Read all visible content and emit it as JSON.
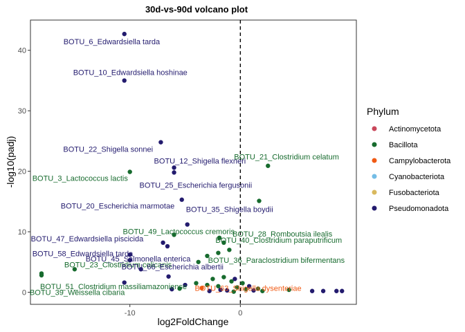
{
  "chart_data": {
    "type": "scatter",
    "title": "30d-vs-90d volcano plot",
    "xlabel": "log2FoldChange",
    "ylabel": "-log10(padj)",
    "xlim": [
      -19,
      10.5
    ],
    "ylim": [
      -2,
      45
    ],
    "xticks": [
      "-10",
      "0"
    ],
    "yticks": [
      "0",
      "10",
      "20",
      "30",
      "40"
    ],
    "grid": false,
    "reference_line_x": 0,
    "legend": {
      "title": "Phylum",
      "placement": "right",
      "items": [
        {
          "label": "Actinomycetota",
          "color": "#c9475b"
        },
        {
          "label": "Bacillota",
          "color": "#176b2e"
        },
        {
          "label": "Campylobacterota",
          "color": "#f05a14"
        },
        {
          "label": "Cyanobacteriota",
          "color": "#74bde6"
        },
        {
          "label": "Fusobacteriota",
          "color": "#d9b95e"
        },
        {
          "label": "Pseudomonadota",
          "color": "#231b6e"
        }
      ]
    },
    "points": [
      {
        "x": -10.5,
        "y": 42.7,
        "phylum": "Pseudomonadota",
        "label": "BOTU_6_Edwardsiella tarda"
      },
      {
        "x": -10.5,
        "y": 35.0,
        "phylum": "Pseudomonadota",
        "label": "BOTU_10_Edwardsiella hoshinae"
      },
      {
        "x": -7.2,
        "y": 24.8,
        "phylum": "Pseudomonadota",
        "label": "BOTU_22_Shigella sonnei"
      },
      {
        "x": 2.5,
        "y": 20.9,
        "phylum": "Bacillota",
        "label": "BOTU_21_Clostridium celatum"
      },
      {
        "x": -6.0,
        "y": 20.6,
        "phylum": "Pseudomonadota",
        "label": "BOTU_12_Shigella flexneri"
      },
      {
        "x": -10.0,
        "y": 19.9,
        "phylum": "Bacillota",
        "label": "BOTU_3_Lactococcus lactis"
      },
      {
        "x": -6.0,
        "y": 19.8,
        "phylum": "Pseudomonadota",
        "label": "BOTU_25_Escherichia fergusonii"
      },
      {
        "x": 1.7,
        "y": 15.1,
        "phylum": "Bacillota",
        "label": ""
      },
      {
        "x": -5.3,
        "y": 15.3,
        "phylum": "Pseudomonadota",
        "label": "BOTU_20_Escherichia marmotae"
      },
      {
        "x": -4.8,
        "y": 11.2,
        "phylum": "Pseudomonadota",
        "label": "BOTU_35_Shigella boydii"
      },
      {
        "x": -6.0,
        "y": 9.5,
        "phylum": "Bacillota",
        "label": "BOTU_49_Lactococcus cremoris"
      },
      {
        "x": -1.9,
        "y": 9.0,
        "phylum": "Bacillota",
        "label": "BOTU_28_Romboutsia ilealis"
      },
      {
        "x": -7.0,
        "y": 8.2,
        "phylum": "Pseudomonadota",
        "label": "BOTU_47_Edwardsiella piscicida"
      },
      {
        "x": -6.6,
        "y": 7.6,
        "phylum": "Pseudomonadota",
        "label": ""
      },
      {
        "x": -1.5,
        "y": 8.2,
        "phylum": "Bacillota",
        "label": "BOTU_40_Clostridium paraputrificum"
      },
      {
        "x": -10.0,
        "y": 6.2,
        "phylum": "Pseudomonadota",
        "label": "BOTU_58_Edwardsiella tarda"
      },
      {
        "x": -10.0,
        "y": 5.3,
        "phylum": "Pseudomonadota",
        "label": "BOTU_45_Salmonella enterica"
      },
      {
        "x": -2.0,
        "y": 6.5,
        "phylum": "Bacillota",
        "label": ""
      },
      {
        "x": -1.0,
        "y": 7.0,
        "phylum": "Bacillota",
        "label": ""
      },
      {
        "x": -3.8,
        "y": 5.0,
        "phylum": "Bacillota",
        "label": "BOTU_36_Paraclostridium bifermentans"
      },
      {
        "x": -3.0,
        "y": 6.0,
        "phylum": "Bacillota",
        "label": ""
      },
      {
        "x": -15.0,
        "y": 3.8,
        "phylum": "Bacillota",
        "label": "BOTU_23_Clostridium colicanis"
      },
      {
        "x": -9.0,
        "y": 3.8,
        "phylum": "Pseudomonadota",
        "label": "BOTU_66_Escherichia albertii"
      },
      {
        "x": -18.0,
        "y": 2.8,
        "phylum": "Bacillota",
        "label": "BOTU_51_Clostridium massiliamazoniense"
      },
      {
        "x": -18.0,
        "y": 3.1,
        "phylum": "Bacillota",
        "label": "BOTU_39_Weissella cibaria"
      },
      {
        "x": -10.5,
        "y": 1.6,
        "phylum": "Pseudomonadota",
        "label": ""
      },
      {
        "x": -6.5,
        "y": 2.6,
        "phylum": "Pseudomonadota",
        "label": ""
      },
      {
        "x": -3.5,
        "y": 0.7,
        "phylum": "Campylobacterota",
        "label": "BOTU_63_Shigella dysenteriae"
      },
      {
        "x": -5.0,
        "y": 1.2,
        "phylum": "Pseudomonadota",
        "label": ""
      },
      {
        "x": -4.0,
        "y": 1.5,
        "phylum": "Bacillota",
        "label": ""
      },
      {
        "x": -3.0,
        "y": 1.2,
        "phylum": "Bacillota",
        "label": ""
      },
      {
        "x": -2.5,
        "y": 2.2,
        "phylum": "Bacillota",
        "label": ""
      },
      {
        "x": -2.0,
        "y": 1.0,
        "phylum": "Bacillota",
        "label": ""
      },
      {
        "x": -1.5,
        "y": 2.5,
        "phylum": "Bacillota",
        "label": ""
      },
      {
        "x": -1.2,
        "y": 0.3,
        "phylum": "Pseudomonadota",
        "label": ""
      },
      {
        "x": -0.8,
        "y": 1.8,
        "phylum": "Bacillota",
        "label": ""
      },
      {
        "x": -0.5,
        "y": 2.2,
        "phylum": "Pseudomonadota",
        "label": ""
      },
      {
        "x": -0.3,
        "y": 0.8,
        "phylum": "Bacillota",
        "label": ""
      },
      {
        "x": 0.2,
        "y": 1.5,
        "phylum": "Bacillota",
        "label": ""
      },
      {
        "x": 0.5,
        "y": 0.5,
        "phylum": "Bacillota",
        "label": ""
      },
      {
        "x": 0.8,
        "y": 1.0,
        "phylum": "Pseudomonadota",
        "label": ""
      },
      {
        "x": 1.2,
        "y": 0.3,
        "phylum": "Pseudomonadota",
        "label": ""
      },
      {
        "x": 1.6,
        "y": 0.6,
        "phylum": "Bacillota",
        "label": ""
      },
      {
        "x": 2.0,
        "y": 0.2,
        "phylum": "Bacillota",
        "label": ""
      },
      {
        "x": -5.5,
        "y": 0.6,
        "phylum": "Bacillota",
        "label": ""
      },
      {
        "x": -6.2,
        "y": 0.5,
        "phylum": "Pseudomonadota",
        "label": ""
      },
      {
        "x": -2.8,
        "y": 0.2,
        "phylum": "Pseudomonadota",
        "label": ""
      },
      {
        "x": -1.8,
        "y": 0.4,
        "phylum": "Pseudomonadota",
        "label": ""
      },
      {
        "x": -0.6,
        "y": 0.1,
        "phylum": "Bacillota",
        "label": ""
      },
      {
        "x": 4.4,
        "y": 0.4,
        "phylum": "Bacillota",
        "label": ""
      },
      {
        "x": 6.5,
        "y": 0.2,
        "phylum": "Pseudomonadota",
        "label": ""
      },
      {
        "x": 7.5,
        "y": 0.2,
        "phylum": "Pseudomonadota",
        "label": ""
      },
      {
        "x": 8.7,
        "y": 0.2,
        "phylum": "Pseudomonadota",
        "label": ""
      },
      {
        "x": 9.2,
        "y": 0.2,
        "phylum": "Pseudomonadota",
        "label": ""
      }
    ]
  }
}
